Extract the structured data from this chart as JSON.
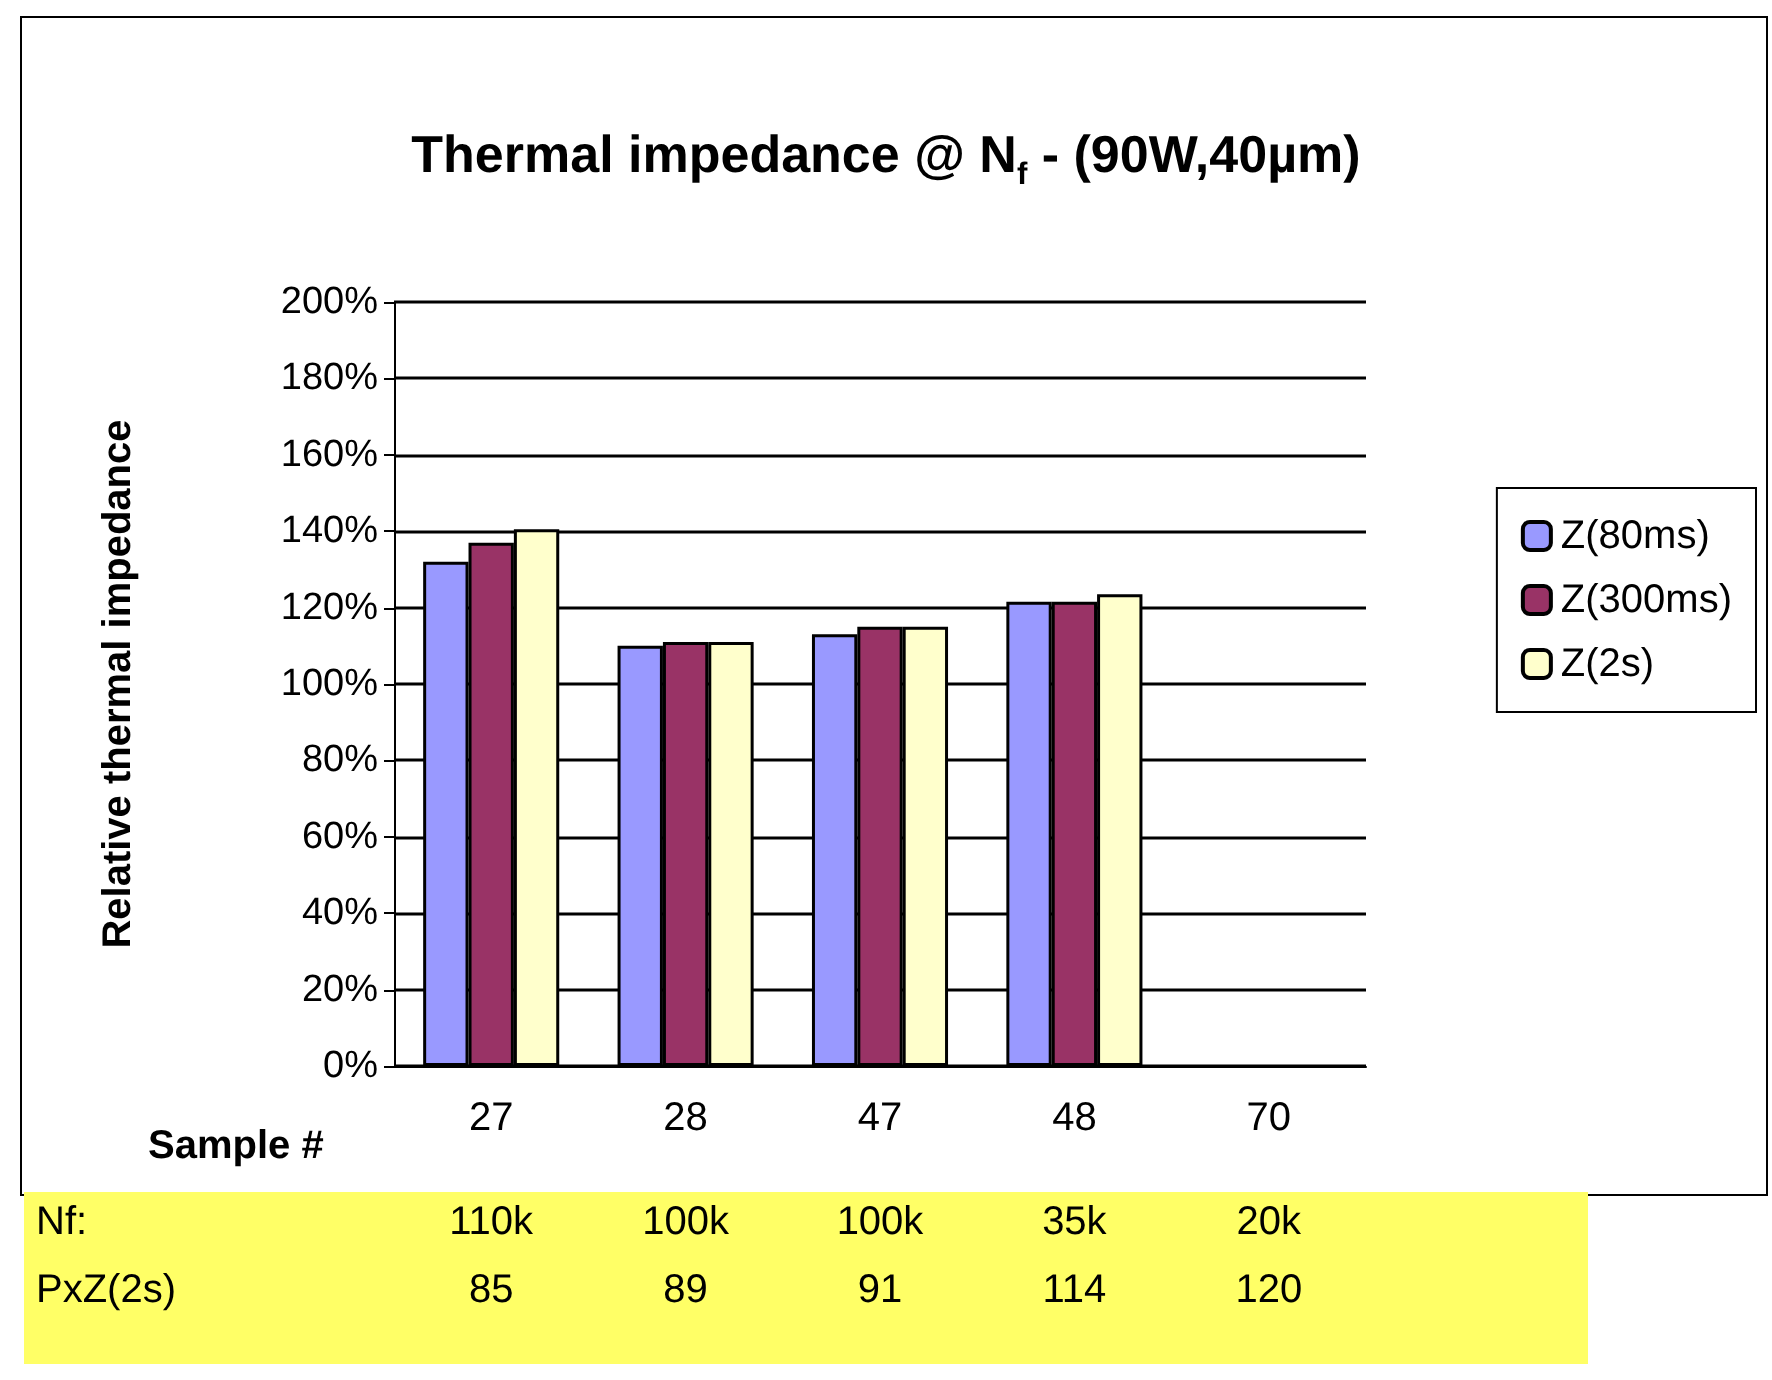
{
  "chart_data": {
    "type": "bar",
    "title": "Thermal impedance @ N$_{f}$ - (90W,40µm)",
    "xlabel": "Sample #",
    "ylabel": "Relative thermal impedance",
    "categories": [
      "27",
      "28",
      "47",
      "48",
      "70"
    ],
    "series": [
      {
        "name": "Z(80ms)",
        "color": "#9999ff",
        "values": [
          132,
          110,
          113,
          121.5,
          null
        ]
      },
      {
        "name": "Z(300ms)",
        "color": "#993366",
        "values": [
          137,
          111,
          115,
          121.5,
          null
        ]
      },
      {
        "name": "Z(2s)",
        "color": "#ffffcc",
        "values": [
          140.5,
          111,
          115,
          123.5,
          null
        ]
      }
    ],
    "ylim": [
      0,
      200
    ],
    "yticks": [
      {
        "value": 0,
        "label": "0%"
      },
      {
        "value": 20,
        "label": "20%"
      },
      {
        "value": 40,
        "label": "40%"
      },
      {
        "value": 60,
        "label": "60%"
      },
      {
        "value": 80,
        "label": "80%"
      },
      {
        "value": 100,
        "label": "100%"
      },
      {
        "value": 120,
        "label": "120%"
      },
      {
        "value": 140,
        "label": "140%"
      },
      {
        "value": 160,
        "label": "160%"
      },
      {
        "value": 180,
        "label": "180%"
      },
      {
        "value": 200,
        "label": "200%"
      }
    ],
    "grid": "y",
    "legend": "right",
    "annotations": [
      "Nf:",
      "110k",
      "100k",
      "100k",
      "35k",
      "20k",
      "PxZ(2s)",
      "85",
      "89",
      "91",
      "114",
      "120"
    ]
  }
}
